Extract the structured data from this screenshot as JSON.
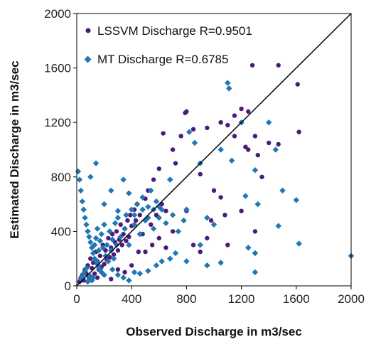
{
  "chart_data": {
    "type": "scatter",
    "xlabel": "Observed Discharge in m3/sec",
    "ylabel": "Estimated  Discharge in m3/sec",
    "xlim": [
      0,
      2000
    ],
    "ylim": [
      0,
      2000
    ],
    "x_ticks": [
      "0",
      "400",
      "800",
      "1200",
      "1600",
      "2000"
    ],
    "y_ticks": [
      "0",
      "400",
      "800",
      "1200",
      "1600",
      "2000"
    ],
    "grid": false,
    "legend_position": "top-left",
    "reference_line": {
      "from": [
        0,
        0
      ],
      "to": [
        2000,
        2000
      ],
      "color": "#000000"
    },
    "series": [
      {
        "name": "LSSVM Discharge R=0.9501",
        "marker": "circle",
        "color": "#4B1A7A",
        "points": [
          [
            20,
            30
          ],
          [
            30,
            60
          ],
          [
            40,
            80
          ],
          [
            50,
            40
          ],
          [
            60,
            120
          ],
          [
            70,
            90
          ],
          [
            80,
            150
          ],
          [
            90,
            60
          ],
          [
            100,
            200
          ],
          [
            110,
            130
          ],
          [
            120,
            170
          ],
          [
            130,
            90
          ],
          [
            140,
            250
          ],
          [
            150,
            180
          ],
          [
            160,
            120
          ],
          [
            170,
            220
          ],
          [
            180,
            140
          ],
          [
            190,
            300
          ],
          [
            200,
            160
          ],
          [
            210,
            260
          ],
          [
            220,
            190
          ],
          [
            230,
            350
          ],
          [
            240,
            210
          ],
          [
            250,
            280
          ],
          [
            260,
            380
          ],
          [
            270,
            230
          ],
          [
            280,
            320
          ],
          [
            290,
            400
          ],
          [
            300,
            260
          ],
          [
            310,
            340
          ],
          [
            320,
            450
          ],
          [
            330,
            300
          ],
          [
            340,
            380
          ],
          [
            350,
            420
          ],
          [
            360,
            330
          ],
          [
            370,
            480
          ],
          [
            380,
            360
          ],
          [
            390,
            520
          ],
          [
            400,
            440
          ],
          [
            420,
            560
          ],
          [
            430,
            480
          ],
          [
            440,
            600
          ],
          [
            460,
            520
          ],
          [
            480,
            380
          ],
          [
            500,
            640
          ],
          [
            520,
            700
          ],
          [
            540,
            450
          ],
          [
            560,
            780
          ],
          [
            580,
            520
          ],
          [
            600,
            860
          ],
          [
            620,
            600
          ],
          [
            630,
            1120
          ],
          [
            650,
            550
          ],
          [
            700,
            1000
          ],
          [
            720,
            900
          ],
          [
            760,
            1100
          ],
          [
            790,
            1270
          ],
          [
            800,
            1280
          ],
          [
            850,
            1150
          ],
          [
            900,
            820
          ],
          [
            950,
            1160
          ],
          [
            1000,
            700
          ],
          [
            1050,
            1200
          ],
          [
            1100,
            1180
          ],
          [
            1150,
            1250
          ],
          [
            1200,
            1300
          ],
          [
            1250,
            1280
          ],
          [
            1280,
            1620
          ],
          [
            1300,
            400
          ],
          [
            1470,
            1620
          ],
          [
            1470,
            1040
          ],
          [
            1610,
            1480
          ],
          [
            1620,
            1130
          ],
          [
            980,
            480
          ],
          [
            1100,
            300
          ],
          [
            1200,
            550
          ],
          [
            900,
            250
          ],
          [
            1300,
            1100
          ],
          [
            1350,
            800
          ],
          [
            700,
            400
          ],
          [
            450,
            250
          ],
          [
            350,
            100
          ],
          [
            250,
            50
          ],
          [
            150,
            60
          ],
          [
            500,
            250
          ],
          [
            600,
            350
          ],
          [
            800,
            550
          ],
          [
            1050,
            650
          ],
          [
            1150,
            1100
          ],
          [
            1250,
            1000
          ],
          [
            400,
            150
          ],
          [
            300,
            120
          ],
          [
            550,
            300
          ],
          [
            650,
            280
          ],
          [
            850,
            300
          ],
          [
            950,
            350
          ],
          [
            1080,
            520
          ],
          [
            1230,
            1020
          ],
          [
            1320,
            960
          ],
          [
            1400,
            1050
          ]
        ]
      },
      {
        "name": "MT Discharge  R=0.6785",
        "marker": "diamond",
        "color": "#1F77B4",
        "points": [
          [
            10,
            840
          ],
          [
            20,
            780
          ],
          [
            30,
            700
          ],
          [
            40,
            620
          ],
          [
            50,
            560
          ],
          [
            60,
            500
          ],
          [
            70,
            450
          ],
          [
            80,
            400
          ],
          [
            90,
            360
          ],
          [
            100,
            320
          ],
          [
            110,
            280
          ],
          [
            120,
            240
          ],
          [
            130,
            200
          ],
          [
            140,
            180
          ],
          [
            150,
            160
          ],
          [
            160,
            140
          ],
          [
            170,
            120
          ],
          [
            180,
            100
          ],
          [
            190,
            90
          ],
          [
            200,
            80
          ],
          [
            30,
            50
          ],
          [
            40,
            70
          ],
          [
            50,
            90
          ],
          [
            60,
            110
          ],
          [
            70,
            130
          ],
          [
            80,
            30
          ],
          [
            90,
            50
          ],
          [
            100,
            70
          ],
          [
            110,
            40
          ],
          [
            120,
            60
          ],
          [
            130,
            300
          ],
          [
            140,
            350
          ],
          [
            150,
            420
          ],
          [
            160,
            260
          ],
          [
            170,
            330
          ],
          [
            180,
            380
          ],
          [
            190,
            280
          ],
          [
            200,
            450
          ],
          [
            210,
            220
          ],
          [
            220,
            300
          ],
          [
            230,
            180
          ],
          [
            240,
            400
          ],
          [
            250,
            260
          ],
          [
            260,
            340
          ],
          [
            270,
            200
          ],
          [
            280,
            460
          ],
          [
            290,
            300
          ],
          [
            300,
            500
          ],
          [
            320,
            360
          ],
          [
            340,
            780
          ],
          [
            350,
            420
          ],
          [
            360,
            520
          ],
          [
            380,
            300
          ],
          [
            400,
            560
          ],
          [
            420,
            450
          ],
          [
            440,
            600
          ],
          [
            460,
            380
          ],
          [
            480,
            650
          ],
          [
            500,
            480
          ],
          [
            520,
            580
          ],
          [
            540,
            700
          ],
          [
            560,
            420
          ],
          [
            580,
            620
          ],
          [
            600,
            500
          ],
          [
            620,
            560
          ],
          [
            650,
            460
          ],
          [
            680,
            780
          ],
          [
            700,
            520
          ],
          [
            740,
            400
          ],
          [
            780,
            480
          ],
          [
            800,
            560
          ],
          [
            820,
            1130
          ],
          [
            860,
            1050
          ],
          [
            900,
            900
          ],
          [
            950,
            500
          ],
          [
            1000,
            450
          ],
          [
            1050,
            1000
          ],
          [
            1100,
            1490
          ],
          [
            1110,
            1450
          ],
          [
            1130,
            920
          ],
          [
            1200,
            1200
          ],
          [
            1230,
            660
          ],
          [
            1250,
            280
          ],
          [
            1300,
            240
          ],
          [
            1320,
            600
          ],
          [
            1400,
            1200
          ],
          [
            1450,
            1000
          ],
          [
            1470,
            440
          ],
          [
            1500,
            700
          ],
          [
            1600,
            630
          ],
          [
            1620,
            310
          ],
          [
            2000,
            220
          ],
          [
            1300,
            850
          ],
          [
            900,
            300
          ],
          [
            800,
            180
          ],
          [
            950,
            150
          ],
          [
            1050,
            170
          ],
          [
            1300,
            100
          ],
          [
            140,
            900
          ],
          [
            100,
            800
          ],
          [
            200,
            600
          ],
          [
            250,
            700
          ],
          [
            300,
            550
          ],
          [
            380,
            680
          ],
          [
            420,
            520
          ],
          [
            480,
            560
          ],
          [
            520,
            500
          ],
          [
            560,
            560
          ],
          [
            600,
            580
          ],
          [
            260,
            120
          ],
          [
            300,
            80
          ],
          [
            340,
            60
          ],
          [
            380,
            40
          ],
          [
            420,
            100
          ],
          [
            460,
            90
          ],
          [
            520,
            110
          ],
          [
            580,
            150
          ],
          [
            620,
            180
          ],
          [
            680,
            200
          ],
          [
            720,
            240
          ]
        ]
      }
    ]
  }
}
